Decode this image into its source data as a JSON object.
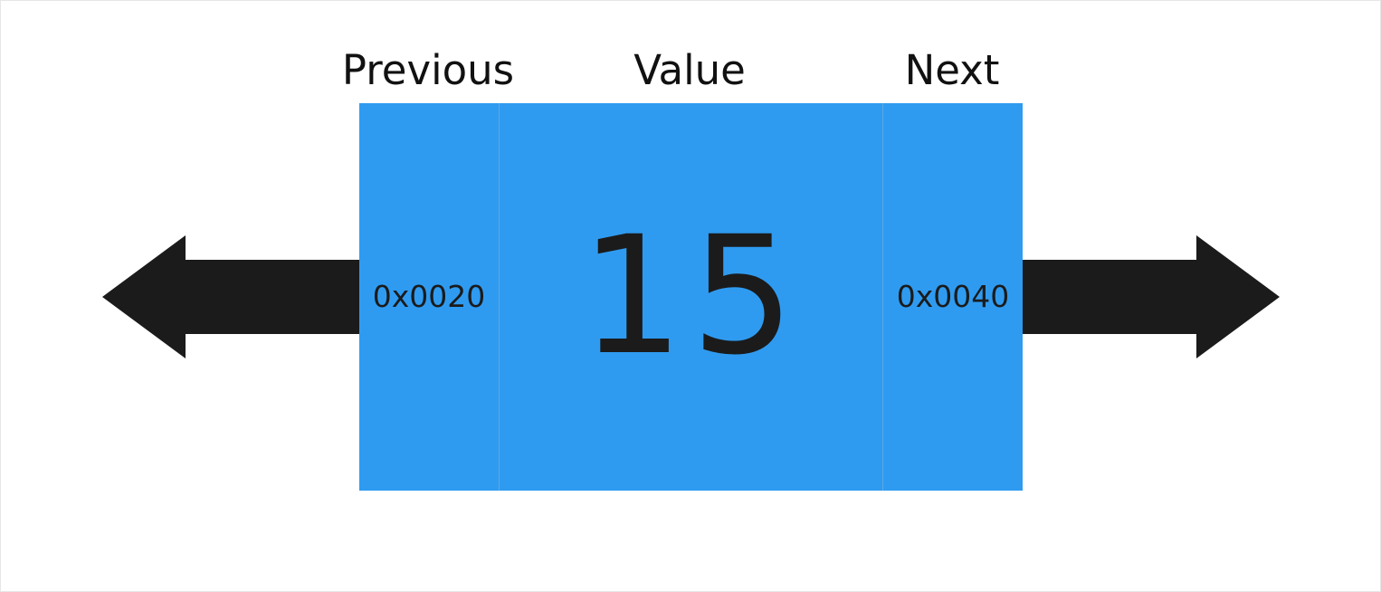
{
  "diagram": {
    "headers": {
      "previous": "Previous",
      "value": "Value",
      "next": "Next"
    },
    "node": {
      "previous_address": "0x0020",
      "value": "15",
      "next_address": "0x0040"
    },
    "colors": {
      "node_fill": "#2f9bf0",
      "arrow_fill": "#1b1b1b",
      "text": "#1b1b1b"
    },
    "icons": {
      "left_arrow": "arrow-left-icon",
      "right_arrow": "arrow-right-icon"
    }
  }
}
